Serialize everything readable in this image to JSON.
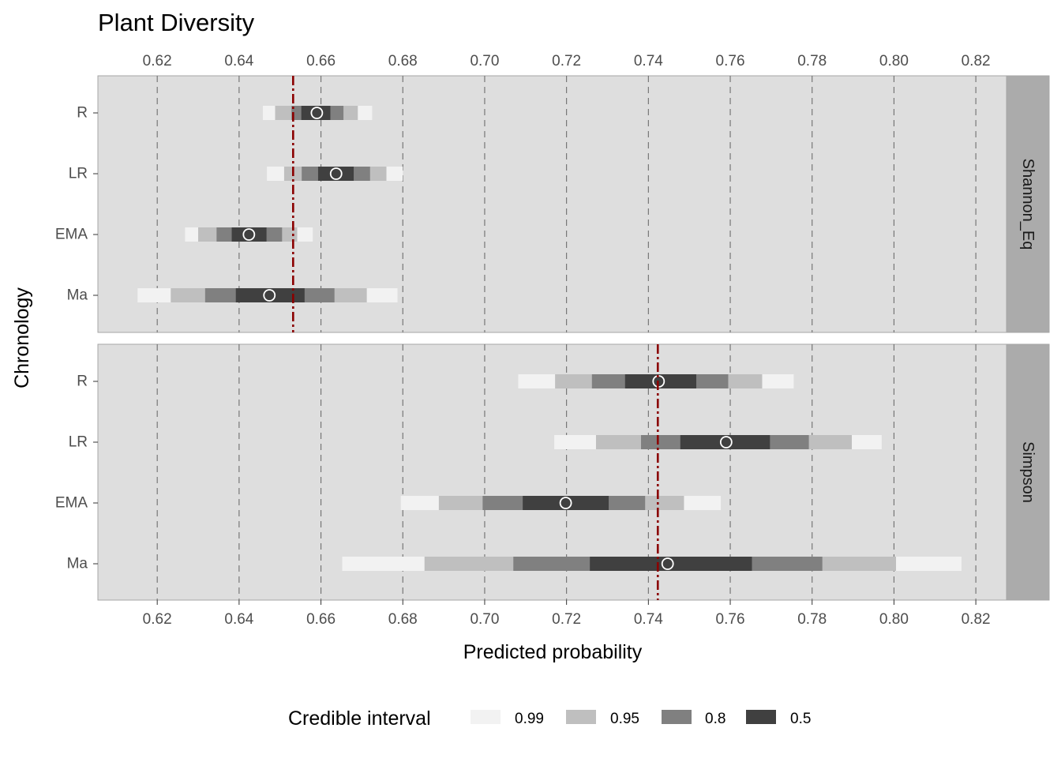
{
  "chart_data": {
    "type": "interval",
    "title": "Plant Diversity",
    "xlabel": "Predicted probability",
    "ylabel": "Chronology",
    "xlim": [
      0.6055,
      0.8275
    ],
    "x_ticks": [
      0.62,
      0.64,
      0.66,
      0.68,
      0.7,
      0.72,
      0.74,
      0.76,
      0.78,
      0.8,
      0.82
    ],
    "x_tick_labels": [
      "0.62",
      "0.64",
      "0.66",
      "0.68",
      "0.70",
      "0.72",
      "0.74",
      "0.76",
      "0.78",
      "0.80",
      "0.82"
    ],
    "categories": [
      "R",
      "LR",
      "EMA",
      "Ma"
    ],
    "grid": "vertical dashed",
    "legend": {
      "title": "Credible interval",
      "position": "bottom",
      "levels": [
        "0.99",
        "0.95",
        "0.8",
        "0.5"
      ],
      "colors": [
        "#f2f2f2",
        "#bfbfbf",
        "#808080",
        "#404040"
      ]
    },
    "reference_line_color": "#8b0000",
    "panels": [
      {
        "label": "Shannon_Eq",
        "reference_line": 0.6532,
        "rows": [
          {
            "category": "R",
            "point": 0.659,
            "intervals": {
              "0.99": [
                0.6458,
                0.6725
              ],
              "0.95": [
                0.6488,
                0.669
              ],
              "0.8": [
                0.6528,
                0.6655
              ],
              "0.5": [
                0.6552,
                0.6623
              ]
            }
          },
          {
            "category": "LR",
            "point": 0.6637,
            "intervals": {
              "0.99": [
                0.6468,
                0.68
              ],
              "0.95": [
                0.651,
                0.676
              ],
              "0.8": [
                0.6553,
                0.672
              ],
              "0.5": [
                0.6593,
                0.668
              ]
            }
          },
          {
            "category": "EMA",
            "point": 0.6424,
            "intervals": {
              "0.99": [
                0.6268,
                0.658
              ],
              "0.95": [
                0.63,
                0.6542
              ],
              "0.8": [
                0.6345,
                0.6505
              ],
              "0.5": [
                0.6382,
                0.6467
              ]
            }
          },
          {
            "category": "Ma",
            "point": 0.6474,
            "intervals": {
              "0.99": [
                0.6152,
                0.6787
              ],
              "0.95": [
                0.6233,
                0.6712
              ],
              "0.8": [
                0.6317,
                0.6633
              ],
              "0.5": [
                0.6392,
                0.656
              ]
            }
          }
        ]
      },
      {
        "label": "Simpson",
        "reference_line": 0.7423,
        "rows": [
          {
            "category": "R",
            "point": 0.7425,
            "intervals": {
              "0.99": [
                0.7082,
                0.7755
              ],
              "0.95": [
                0.7172,
                0.7678
              ],
              "0.8": [
                0.7262,
                0.7595
              ],
              "0.5": [
                0.7343,
                0.7517
              ]
            }
          },
          {
            "category": "LR",
            "point": 0.759,
            "intervals": {
              "0.99": [
                0.717,
                0.797
              ],
              "0.95": [
                0.7272,
                0.7897
              ],
              "0.8": [
                0.7382,
                0.7792
              ],
              "0.5": [
                0.7478,
                0.7697
              ]
            }
          },
          {
            "category": "EMA",
            "point": 0.7198,
            "intervals": {
              "0.99": [
                0.6795,
                0.7577
              ],
              "0.95": [
                0.6888,
                0.7487
              ],
              "0.8": [
                0.6995,
                0.7392
              ],
              "0.5": [
                0.7093,
                0.7303
              ]
            }
          },
          {
            "category": "Ma",
            "point": 0.7447,
            "intervals": {
              "0.99": [
                0.6652,
                0.8165
              ],
              "0.95": [
                0.6853,
                0.8005
              ],
              "0.8": [
                0.707,
                0.7825
              ],
              "0.5": [
                0.7257,
                0.7653
              ]
            }
          }
        ]
      }
    ]
  }
}
